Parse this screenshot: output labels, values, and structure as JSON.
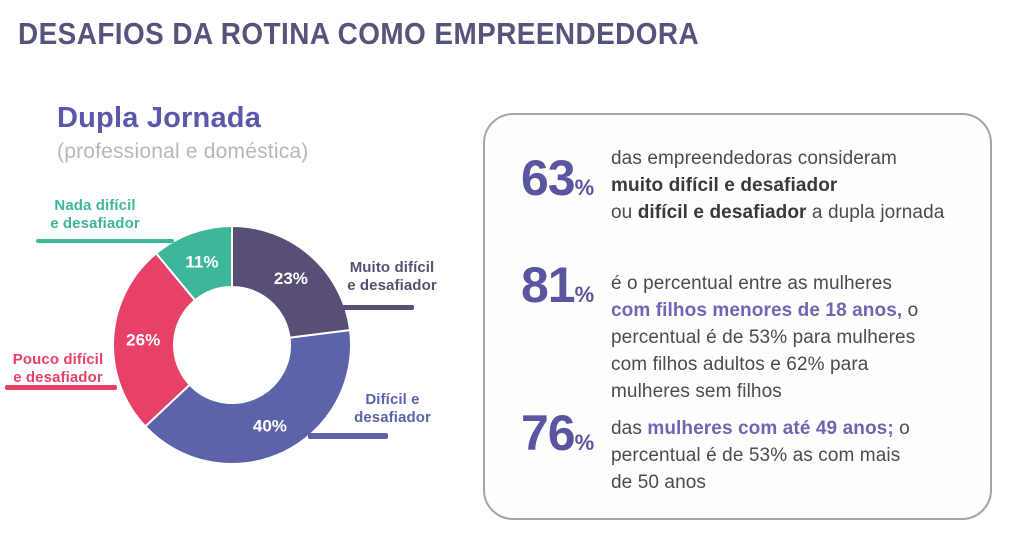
{
  "page": {
    "title": "DESAFIOS DA ROTINA COMO EMPREENDEDORA"
  },
  "chart": {
    "title": "Dupla Jornada",
    "subtitle": "(professional e doméstica)",
    "labels": {
      "nada": "Nada difícil\ne desafiador",
      "muito": "Muito difícil\ne desafiador",
      "pouco": "Pouco difícil\ne desafiador",
      "dificil": "Difícil e\ndesafiador"
    }
  },
  "chart_data": {
    "type": "pie",
    "subtype": "donut",
    "title": "Dupla Jornada (professional e doméstica)",
    "start_angle_deg": 0,
    "direction": "clockwise",
    "segments": [
      {
        "label": "Muito difícil e desafiador",
        "value": 23,
        "display": "23%",
        "color": "#594f76"
      },
      {
        "label": "Difícil e desafiador",
        "value": 40,
        "display": "40%",
        "color": "#5c63a9"
      },
      {
        "label": "Pouco difícil e desafiador",
        "value": 26,
        "display": "26%",
        "color": "#e84168"
      },
      {
        "label": "Nada difícil e desafiador",
        "value": 11,
        "display": "11%",
        "color": "#3eb69a"
      }
    ]
  },
  "colors": {
    "title": "#55547a",
    "chart_title": "#5b58ab",
    "stat_number": "#5a55a0",
    "inline_highlight": "#6b67b3",
    "body_text": "#4a4a50"
  },
  "stats": [
    {
      "number": "63",
      "unit": "%",
      "spans": [
        {
          "text": "das empreendedoras consideram\n",
          "style": "normal"
        },
        {
          "text": "muito difícil e desafiador\n",
          "style": "bold"
        },
        {
          "text": "ou ",
          "style": "normal"
        },
        {
          "text": "difícil e desafiador",
          "style": "bold"
        },
        {
          "text": " a dupla jornada",
          "style": "normal"
        }
      ]
    },
    {
      "number": "81",
      "unit": "%",
      "spans": [
        {
          "text": "é o percentual entre as mulheres\n",
          "style": "normal"
        },
        {
          "text": "com filhos menores de 18 anos,",
          "style": "purple"
        },
        {
          "text": " o\npercentual é de 53% para mulheres\ncom filhos adultos e 62% para\nmulheres sem filhos",
          "style": "normal"
        }
      ]
    },
    {
      "number": "76",
      "unit": "%",
      "spans": [
        {
          "text": "das ",
          "style": "normal"
        },
        {
          "text": "mulheres com até 49 anos;",
          "style": "purple"
        },
        {
          "text": " o\npercentual é de 53% as com mais\nde 50 anos",
          "style": "normal"
        }
      ]
    }
  ]
}
